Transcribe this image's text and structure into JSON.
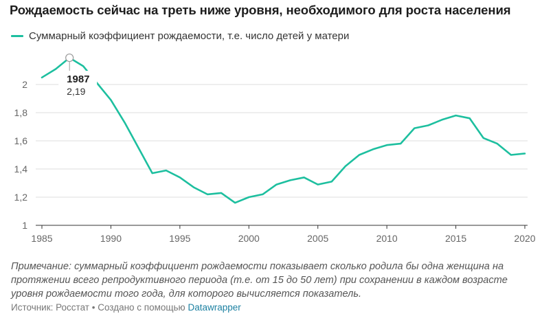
{
  "header": {
    "title": "Рождаемость сейчас на треть ниже уровня, необходимого для роста населения"
  },
  "legend": {
    "label": "Суммарный коэффициент рождаемости, т.е. число детей у матери"
  },
  "footer": {
    "note": "Примечание: суммарный коэффициент рождаемости показывает сколько родила бы одна женщина на протяжении всего репродуктивного периода (т.е. от 15 до 50 лет) при сохранении в каждом возрасте уровня рождаемости того года, для которого вычисляется показатель.",
    "source_prefix": "Источник: Росстат • Создано с помощью",
    "source_link": "Datawrapper"
  },
  "colors": {
    "line": "#1dbf9f",
    "grid": "#dddddd",
    "axis_text": "#666666"
  },
  "chart_data": {
    "type": "line",
    "title": "Рождаемость сейчас на треть ниже уровня, необходимого для роста населения",
    "xlabel": "",
    "ylabel": "",
    "xlim": [
      1985,
      2020
    ],
    "ylim": [
      1,
      2.2
    ],
    "x_ticks": [
      "1985",
      "1990",
      "1995",
      "2000",
      "2005",
      "2010",
      "2015",
      "2020"
    ],
    "y_ticks": [
      "1",
      "1,2",
      "1,4",
      "1,6",
      "1,8",
      "2"
    ],
    "grid": true,
    "legend_position": "top-left",
    "annotation": {
      "year": "1987",
      "value": "2,19",
      "x": 1987,
      "y": 2.19
    },
    "series": [
      {
        "name": "Суммарный коэффициент рождаемости, т.е. число детей у матери",
        "x": [
          1985,
          1986,
          1987,
          1988,
          1989,
          1990,
          1991,
          1992,
          1993,
          1994,
          1995,
          1996,
          1997,
          1998,
          1999,
          2000,
          2001,
          2002,
          2003,
          2004,
          2005,
          2006,
          2007,
          2008,
          2009,
          2010,
          2011,
          2012,
          2013,
          2014,
          2015,
          2016,
          2017,
          2018,
          2019,
          2020
        ],
        "values": [
          2.05,
          2.11,
          2.19,
          2.13,
          2.01,
          1.89,
          1.73,
          1.55,
          1.37,
          1.39,
          1.34,
          1.27,
          1.22,
          1.23,
          1.16,
          1.2,
          1.22,
          1.29,
          1.32,
          1.34,
          1.29,
          1.31,
          1.42,
          1.5,
          1.54,
          1.57,
          1.58,
          1.69,
          1.71,
          1.75,
          1.78,
          1.76,
          1.62,
          1.58,
          1.5,
          1.51
        ]
      }
    ]
  }
}
